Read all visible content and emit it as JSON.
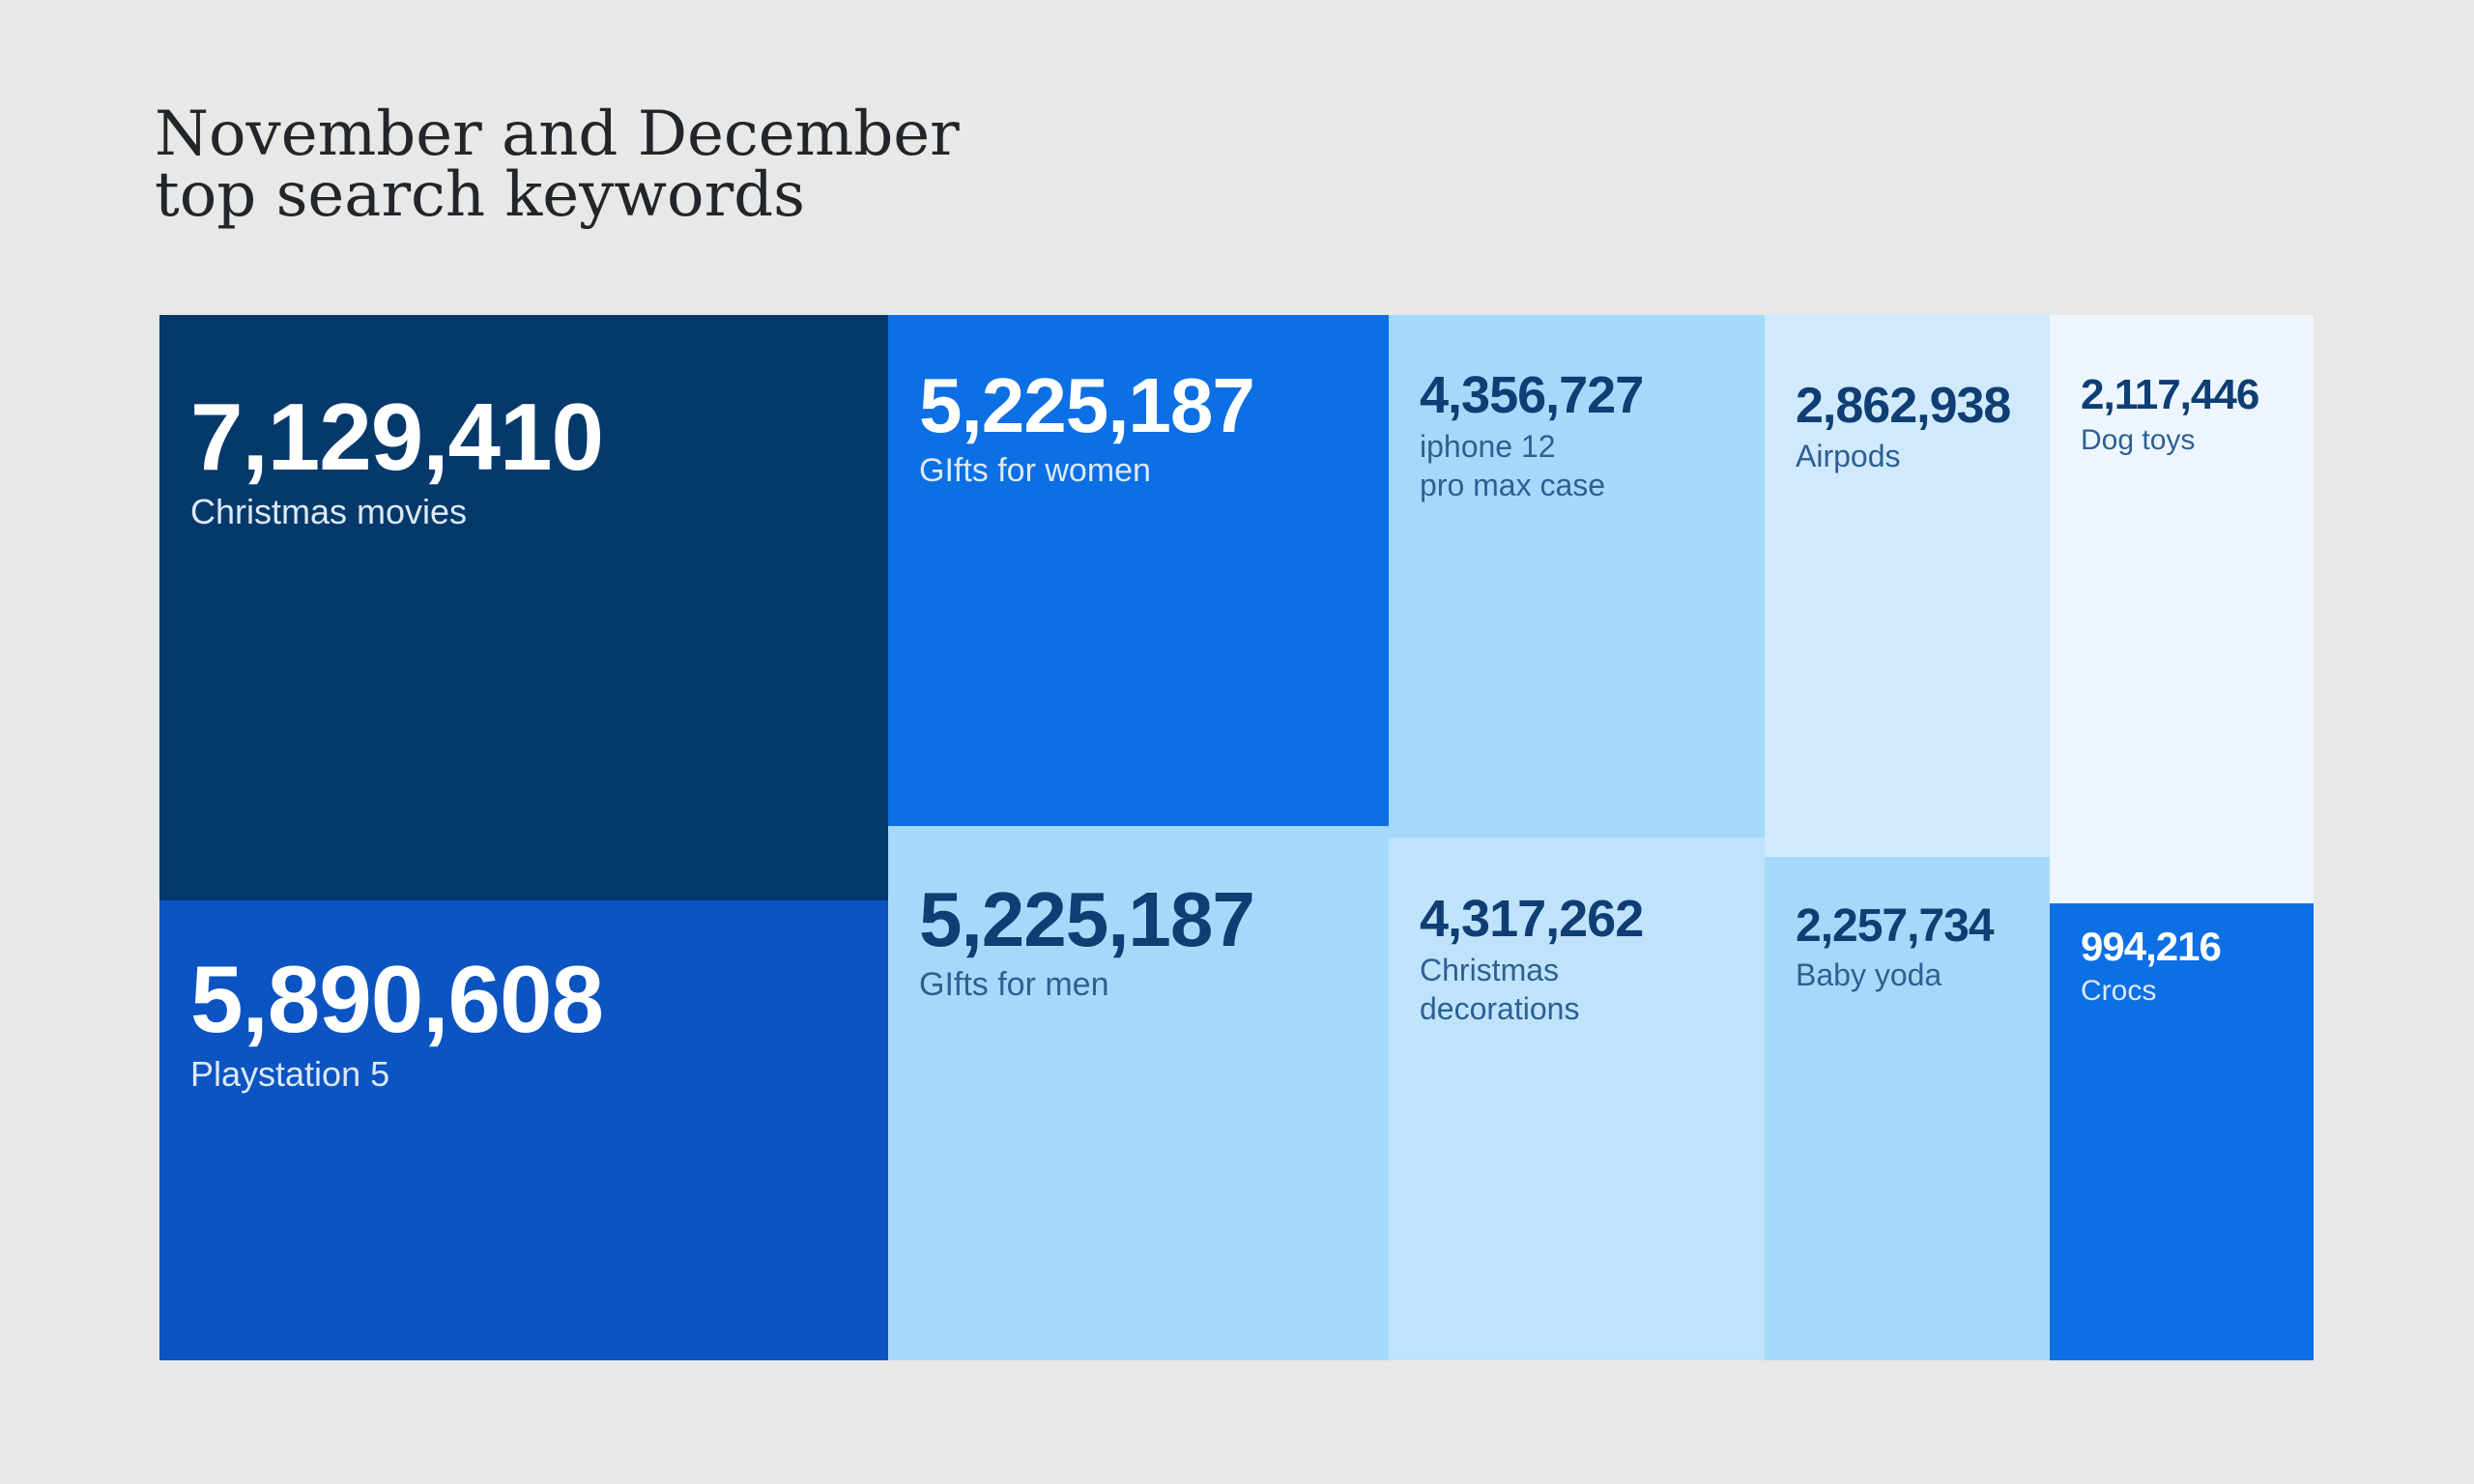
{
  "page": {
    "background_color": "#e8e8e7"
  },
  "title": {
    "text": "November and December\ntop search keywords",
    "color": "#22262b"
  },
  "chart_data": {
    "type": "treemap",
    "title": "November and December top search keywords",
    "legend": "none",
    "items": [
      {
        "keyword": "Christmas movies",
        "value": 7129410,
        "value_label": "7,129,410",
        "tile_color": "#05396b",
        "value_color": "#ffffff",
        "label_color": "#dce9f7"
      },
      {
        "keyword": "GIfts for women",
        "value": 5225187,
        "value_label": "5,225,187",
        "tile_color": "#0c6fe4",
        "value_color": "#ffffff",
        "label_color": "#dce9f7"
      },
      {
        "keyword": "iphone 12\npro max case",
        "value": 4356727,
        "value_label": "4,356,727",
        "tile_color": "#a5d9fb",
        "value_color": "#0e3e73",
        "label_color": "#2d6092"
      },
      {
        "keyword": "Airpods",
        "value": 2862938,
        "value_label": "2,862,938",
        "tile_color": "#d0e9fc",
        "value_color": "#0e3e73",
        "label_color": "#2d6092"
      },
      {
        "keyword": "Dog toys",
        "value": 2117446,
        "value_label": "2,117,446",
        "tile_color": "#edf6fe",
        "value_color": "#0e3e73",
        "label_color": "#2d6092"
      },
      {
        "keyword": "Playstation 5",
        "value": 5890608,
        "value_label": "5,890,608",
        "tile_color": "#0b54c2",
        "value_color": "#ffffff",
        "label_color": "#dce9f7"
      },
      {
        "keyword": "GIfts for men",
        "value": 5225187,
        "value_label": "5,225,187",
        "tile_color": "#a5d9fb",
        "value_color": "#0e3e73",
        "label_color": "#2d6092"
      },
      {
        "keyword": "Christmas\ndecorations",
        "value": 4317262,
        "value_label": "4,317,262",
        "tile_color": "#bfe3fb",
        "value_color": "#0e3e73",
        "label_color": "#2d6092"
      },
      {
        "keyword": "Baby yoda",
        "value": 2257734,
        "value_label": "2,257,734",
        "tile_color": "#a5d9fb",
        "value_color": "#0e3e73",
        "label_color": "#2d6092"
      },
      {
        "keyword": "Crocs",
        "value": 994216,
        "value_label": "994,216",
        "tile_color": "#0c6fe4",
        "value_color": "#ffffff",
        "label_color": "#dce9f7"
      }
    ]
  }
}
